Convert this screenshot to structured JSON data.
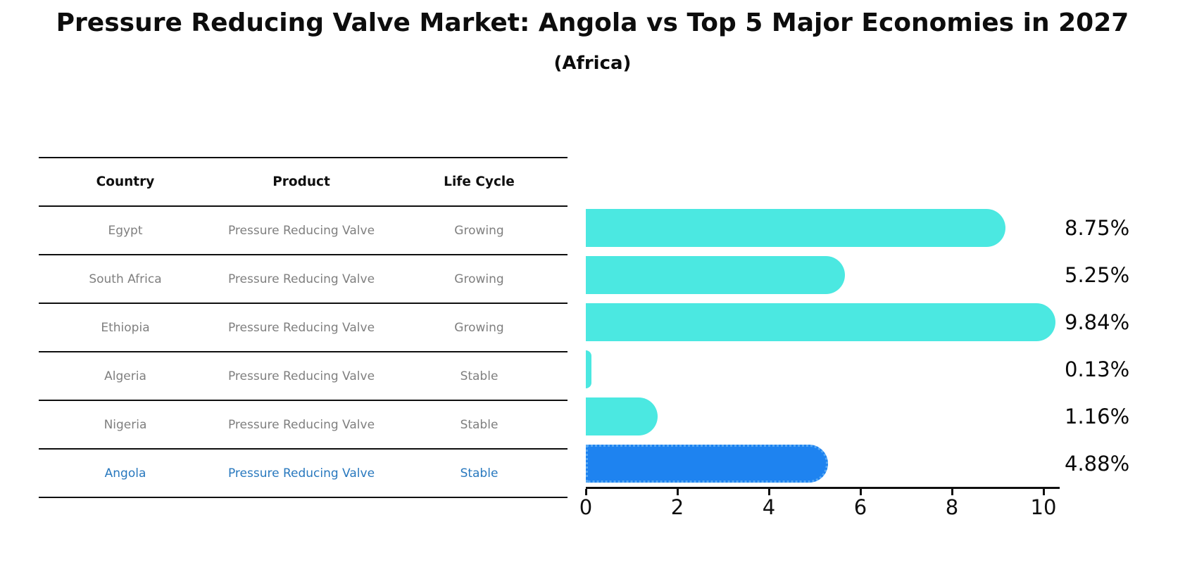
{
  "title": "Pressure Reducing Valve Market: Angola vs Top 5 Major Economies in 2027",
  "subtitle": "(Africa)",
  "table": {
    "headers": [
      "Country",
      "Product",
      "Life Cycle"
    ],
    "rows": [
      {
        "country": "Egypt",
        "product": "Pressure Reducing Valve",
        "life_cycle": "Growing",
        "highlight": false
      },
      {
        "country": "South Africa",
        "product": "Pressure Reducing Valve",
        "life_cycle": "Growing",
        "highlight": false
      },
      {
        "country": "Ethiopia",
        "product": "Pressure Reducing Valve",
        "life_cycle": "Growing",
        "highlight": false
      },
      {
        "country": "Algeria",
        "product": "Pressure Reducing Valve",
        "life_cycle": "Stable",
        "highlight": false
      },
      {
        "country": "Nigeria",
        "product": "Pressure Reducing Valve",
        "life_cycle": "Stable",
        "highlight": false
      },
      {
        "country": "Angola",
        "product": "Pressure Reducing Valve",
        "life_cycle": "Stable",
        "highlight": true
      }
    ]
  },
  "chart_data": {
    "type": "bar",
    "orientation": "horizontal",
    "title": "Pressure Reducing Valve Market: Angola vs Top 5 Major Economies in 2027 (Africa)",
    "categories": [
      "Egypt",
      "South Africa",
      "Ethiopia",
      "Algeria",
      "Nigeria",
      "Angola"
    ],
    "values": [
      8.75,
      5.25,
      9.84,
      0.13,
      1.16,
      4.88
    ],
    "value_labels": [
      "8.75%",
      "5.25%",
      "9.84%",
      "0.13%",
      "1.16%",
      "4.88%"
    ],
    "x_ticks": [
      0,
      2,
      4,
      6,
      8,
      10
    ],
    "xlim": [
      0,
      10.35
    ],
    "grid": false,
    "legend": "none",
    "bar_color": "#4be8e1",
    "highlight_index": 5,
    "highlight_color": "#1e83f0",
    "highlight_border_color": "#58a9f4",
    "highlight_text_color": "#2878be"
  }
}
